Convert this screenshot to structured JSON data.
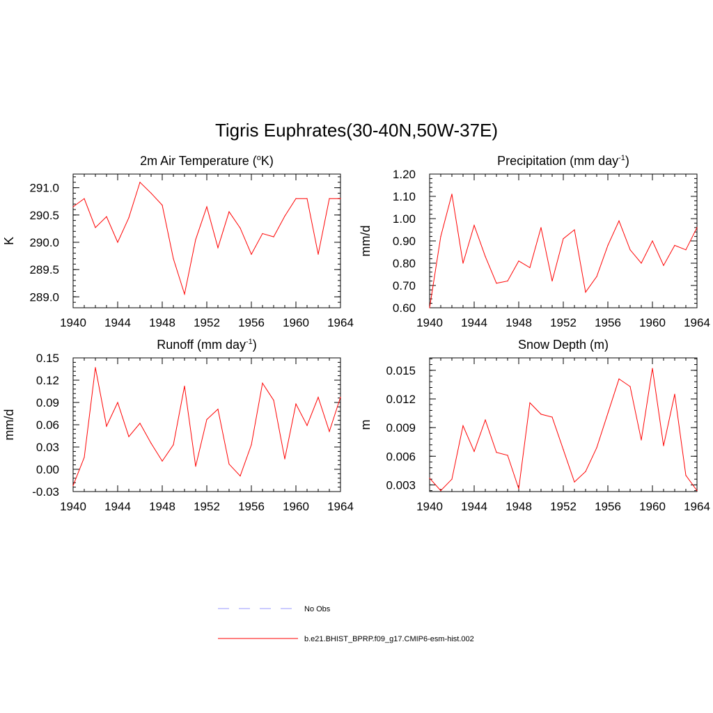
{
  "figure": {
    "title": "Tigris Euphrates(30-40N,50W-37E)"
  },
  "chart_data": [
    {
      "type": "line",
      "title": "2m Air Temperature (",
      "title_sup": "o",
      "title_after": "K)",
      "ylabel": "K",
      "xlim": [
        1940,
        1964
      ],
      "ylim": [
        288.8,
        291.25
      ],
      "x_ticks": [
        1940,
        1944,
        1948,
        1952,
        1956,
        1960,
        1964
      ],
      "y_ticks": [
        289.0,
        289.5,
        290.0,
        290.5,
        291.0
      ],
      "y_tick_labels": [
        "289.0",
        "289.5",
        "290.0",
        "290.5",
        "291.0"
      ],
      "series": [
        {
          "x": [
            1940,
            1941,
            1942,
            1943,
            1944,
            1945,
            1946,
            1947,
            1948,
            1949,
            1950,
            1951,
            1952,
            1953,
            1954,
            1955,
            1956,
            1957,
            1958,
            1959,
            1960,
            1961,
            1962,
            1963,
            1964
          ],
          "values": [
            290.65,
            290.8,
            290.27,
            290.47,
            290.0,
            290.45,
            291.1,
            290.9,
            290.68,
            289.7,
            289.05,
            290.05,
            290.65,
            289.9,
            290.56,
            290.26,
            289.78,
            290.16,
            290.1,
            290.48,
            290.8,
            290.8,
            289.78,
            290.8,
            290.8
          ],
          "color": "#ff0000"
        }
      ]
    },
    {
      "type": "line",
      "title": "Precipitation (mm day",
      "title_sup": "-1",
      "title_after": ")",
      "ylabel": "mm/d",
      "xlim": [
        1940,
        1964
      ],
      "ylim": [
        0.6,
        1.2
      ],
      "x_ticks": [
        1940,
        1944,
        1948,
        1952,
        1956,
        1960,
        1964
      ],
      "y_ticks": [
        0.6,
        0.7,
        0.8,
        0.9,
        1.0,
        1.1,
        1.2
      ],
      "y_tick_labels": [
        "0.60",
        "0.70",
        "0.80",
        "0.90",
        "1.00",
        "1.10",
        "1.20"
      ],
      "series": [
        {
          "x": [
            1940,
            1941,
            1942,
            1943,
            1944,
            1945,
            1946,
            1947,
            1948,
            1949,
            1950,
            1951,
            1952,
            1953,
            1954,
            1955,
            1956,
            1957,
            1958,
            1959,
            1960,
            1961,
            1962,
            1963,
            1964
          ],
          "values": [
            0.6,
            0.92,
            1.11,
            0.8,
            0.97,
            0.83,
            0.71,
            0.72,
            0.81,
            0.78,
            0.96,
            0.72,
            0.91,
            0.95,
            0.67,
            0.74,
            0.88,
            0.99,
            0.86,
            0.8,
            0.9,
            0.79,
            0.88,
            0.86,
            0.96
          ],
          "color": "#ff0000"
        }
      ]
    },
    {
      "type": "line",
      "title": "Runoff (mm day",
      "title_sup": "-1",
      "title_after": ")",
      "ylabel": "mm/d",
      "xlim": [
        1940,
        1964
      ],
      "ylim": [
        -0.03,
        0.15
      ],
      "x_ticks": [
        1940,
        1944,
        1948,
        1952,
        1956,
        1960,
        1964
      ],
      "y_ticks": [
        -0.03,
        0.0,
        0.03,
        0.06,
        0.09,
        0.12,
        0.15
      ],
      "y_tick_labels": [
        "-0.03",
        "0.00",
        "0.03",
        "0.06",
        "0.09",
        "0.12",
        "0.15"
      ],
      "series": [
        {
          "x": [
            1940,
            1941,
            1942,
            1943,
            1944,
            1945,
            1946,
            1947,
            1948,
            1949,
            1950,
            1951,
            1952,
            1953,
            1954,
            1955,
            1956,
            1957,
            1958,
            1959,
            1960,
            1961,
            1962,
            1963,
            1964
          ],
          "values": [
            -0.022,
            0.016,
            0.137,
            0.058,
            0.09,
            0.044,
            0.062,
            0.035,
            0.011,
            0.033,
            0.112,
            0.004,
            0.067,
            0.081,
            0.007,
            -0.009,
            0.033,
            0.116,
            0.093,
            0.014,
            0.088,
            0.059,
            0.097,
            0.051,
            0.097
          ],
          "color": "#ff0000"
        }
      ]
    },
    {
      "type": "line",
      "title": "Snow Depth (m)",
      "title_sup": "",
      "title_after": "",
      "ylabel": "m",
      "xlim": [
        1940,
        1964
      ],
      "ylim": [
        0.0023,
        0.0163
      ],
      "x_ticks": [
        1940,
        1944,
        1948,
        1952,
        1956,
        1960,
        1964
      ],
      "y_ticks": [
        0.003,
        0.006,
        0.009,
        0.012,
        0.015
      ],
      "y_tick_labels": [
        "0.003",
        "0.006",
        "0.009",
        "0.012",
        "0.015"
      ],
      "series": [
        {
          "x": [
            1940,
            1941,
            1942,
            1943,
            1944,
            1945,
            1946,
            1947,
            1948,
            1949,
            1950,
            1951,
            1952,
            1953,
            1954,
            1955,
            1956,
            1957,
            1958,
            1959,
            1960,
            1961,
            1962,
            1963,
            1964
          ],
          "values": [
            0.0037,
            0.0024,
            0.0036,
            0.0092,
            0.0065,
            0.0098,
            0.0064,
            0.0061,
            0.0026,
            0.0116,
            0.0104,
            0.0101,
            0.0067,
            0.0033,
            0.0044,
            0.0069,
            0.0105,
            0.0141,
            0.0133,
            0.0077,
            0.0152,
            0.0071,
            0.0125,
            0.004,
            0.0024
          ],
          "color": "#ff0000"
        }
      ]
    }
  ],
  "legend": [
    {
      "label": "No Obs",
      "style": "dashed",
      "color": "#9999ff"
    },
    {
      "label": "b.e21.BHIST_BPRP.f09_g17.CMIP6-esm-hist.002",
      "style": "solid",
      "color": "#ff0000"
    }
  ]
}
